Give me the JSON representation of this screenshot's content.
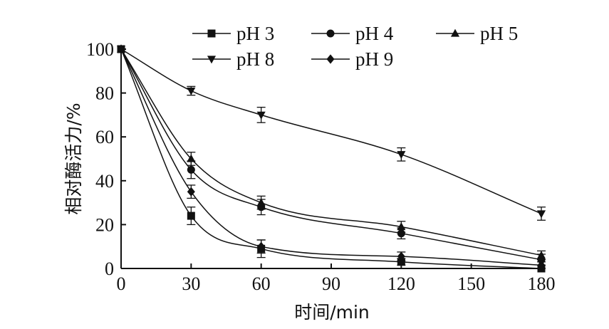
{
  "chart_data": {
    "type": "line",
    "xlabel": "时间/min",
    "ylabel": "相对酶活力/%",
    "xlim": [
      0,
      180
    ],
    "ylim": [
      0,
      100
    ],
    "xticks": [
      "0",
      "30",
      "60",
      "90",
      "120",
      "150",
      "180"
    ],
    "yticks": [
      "0",
      "20",
      "40",
      "60",
      "80",
      "100"
    ],
    "x": [
      0,
      30,
      60,
      120,
      180
    ],
    "legend_position": "top",
    "series": [
      {
        "name": "pH 3",
        "marker": "square",
        "values": [
          100,
          24,
          9,
          3,
          0
        ],
        "errors": [
          0,
          4,
          4,
          1.5,
          1.5
        ]
      },
      {
        "name": "pH 4",
        "marker": "circle",
        "values": [
          100,
          45,
          28,
          16,
          4
        ],
        "errors": [
          0,
          4,
          3.5,
          2.5,
          2.5
        ]
      },
      {
        "name": "pH 5",
        "marker": "triangle-up",
        "values": [
          100,
          50,
          30,
          19,
          6
        ],
        "errors": [
          0,
          3,
          3,
          2.5,
          2
        ]
      },
      {
        "name": "pH 8",
        "marker": "triangle-down",
        "values": [
          100,
          81,
          70,
          52,
          25
        ],
        "errors": [
          0,
          2,
          3.5,
          3,
          3
        ]
      },
      {
        "name": "pH 9",
        "marker": "diamond",
        "values": [
          100,
          35,
          10,
          5.5,
          1.5
        ],
        "errors": [
          0,
          3,
          3,
          2,
          1.5
        ]
      }
    ]
  }
}
